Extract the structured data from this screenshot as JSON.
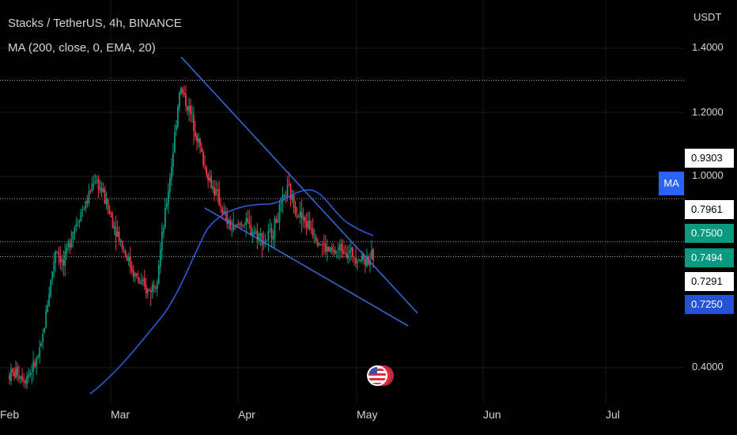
{
  "header": {
    "symbol_title": "Stacks / TetherUS, 4h, BINANCE",
    "indicator_label": "MA (200, close, 0, EMA, 20)"
  },
  "axis": {
    "unit": "USDT",
    "y_ticks": [
      "1.4000",
      "1.2000",
      "1.0000",
      "0.4000"
    ],
    "x_ticks": [
      "Feb",
      "Mar",
      "Apr",
      "May",
      "Jun",
      "Jul"
    ]
  },
  "ma_button": "MA",
  "price_labels": [
    {
      "value": "0.9303",
      "bg": "#ffffff",
      "fg": "#000000"
    },
    {
      "value": "0.7961",
      "bg": "#ffffff",
      "fg": "#000000"
    },
    {
      "value": "0.7500",
      "bg": "#089981",
      "fg": "#ffffff"
    },
    {
      "value": "0.7494",
      "bg": "#089981",
      "fg": "#ffffff"
    },
    {
      "value": "0.7291",
      "bg": "#ffffff",
      "fg": "#000000"
    },
    {
      "value": "0.7250",
      "bg": "#2453d6",
      "fg": "#ffffff"
    }
  ],
  "colors": {
    "up": "#089981",
    "down": "#f23645",
    "trendline": "#3f6fe6",
    "moving_average": "#2f5fe0",
    "grid": "#1c1c1c",
    "dotted_level": "#c8c8c8"
  },
  "chart_data": {
    "type": "candlestick",
    "symbol": "Stacks / TetherUS",
    "timeframe": "4h",
    "exchange": "BINANCE",
    "horizontal_levels": [
      1.3,
      0.9303,
      0.7961,
      0.7494
    ],
    "last_price": 0.7494,
    "moving_average": {
      "period": 200,
      "source": "close",
      "type": "EMA"
    },
    "price_path": [
      0.38,
      0.39,
      0.37,
      0.4,
      0.45,
      0.62,
      0.78,
      0.72,
      0.82,
      0.88,
      0.92,
      1.0,
      0.95,
      0.88,
      0.82,
      0.76,
      0.7,
      0.66,
      0.64,
      0.68,
      0.86,
      1.05,
      1.28,
      1.22,
      1.15,
      1.05,
      0.98,
      0.93,
      0.86,
      0.83,
      0.86,
      0.84,
      0.82,
      0.8,
      0.83,
      0.9,
      0.96,
      0.9,
      0.86,
      0.84,
      0.8,
      0.77,
      0.76,
      0.78,
      0.76,
      0.75,
      0.74,
      0.75
    ]
  },
  "widget": {
    "flag_icon": "us-flag-icon"
  }
}
